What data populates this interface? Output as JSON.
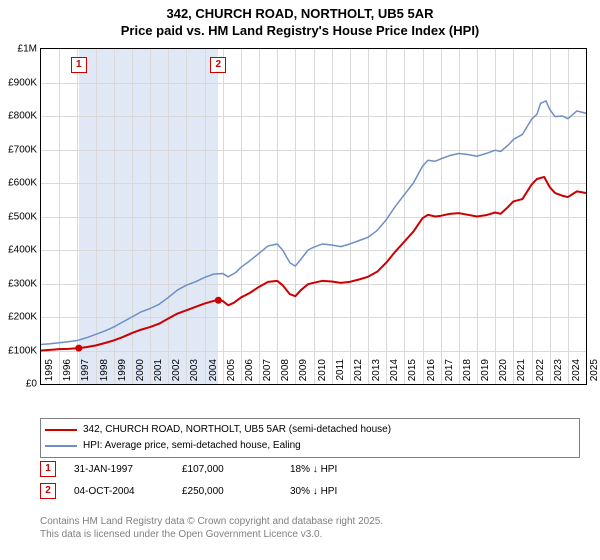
{
  "title_line1": "342, CHURCH ROAD, NORTHOLT, UB5 5AR",
  "title_line2": "Price paid vs. HM Land Registry's House Price Index (HPI)",
  "chart": {
    "type": "line",
    "background_color": "#ffffff",
    "grid_color": "#d9d9d9",
    "shade_color": "#e0e8f5",
    "border_color": "#000000",
    "ylim": [
      0,
      1000000
    ],
    "ytick_step": 100000,
    "ylabels": [
      "£0",
      "£100K",
      "£200K",
      "£300K",
      "£400K",
      "£500K",
      "£600K",
      "£700K",
      "£800K",
      "£900K",
      "£1M"
    ],
    "xlim": [
      1995,
      2025
    ],
    "xtick_step": 1,
    "xlabels": [
      "1995",
      "1996",
      "1997",
      "1998",
      "1999",
      "2000",
      "2001",
      "2002",
      "2003",
      "2004",
      "2005",
      "2006",
      "2007",
      "2008",
      "2009",
      "2010",
      "2011",
      "2012",
      "2013",
      "2014",
      "2015",
      "2016",
      "2017",
      "2018",
      "2019",
      "2020",
      "2021",
      "2022",
      "2023",
      "2024",
      "2025"
    ],
    "owned_periods": [
      {
        "start": 1997.08,
        "end": 2004.76
      }
    ],
    "markers": [
      {
        "id": "1",
        "year": 1997.08,
        "price": 107000
      },
      {
        "id": "2",
        "year": 2004.76,
        "price": 250000
      }
    ],
    "series": [
      {
        "name": "price_paid",
        "label": "342, CHURCH ROAD, NORTHOLT, UB5 5AR (semi-detached house)",
        "color": "#cc0000",
        "line_width": 2,
        "points": [
          [
            1995.0,
            100000
          ],
          [
            1995.5,
            102000
          ],
          [
            1996.0,
            104000
          ],
          [
            1996.5,
            105000
          ],
          [
            1997.08,
            107000
          ],
          [
            1997.5,
            110000
          ],
          [
            1998.0,
            115000
          ],
          [
            1998.5,
            122000
          ],
          [
            1999.0,
            130000
          ],
          [
            1999.5,
            140000
          ],
          [
            2000.0,
            152000
          ],
          [
            2000.5,
            162000
          ],
          [
            2001.0,
            170000
          ],
          [
            2001.5,
            180000
          ],
          [
            2002.0,
            195000
          ],
          [
            2002.5,
            210000
          ],
          [
            2003.0,
            220000
          ],
          [
            2003.5,
            230000
          ],
          [
            2004.0,
            240000
          ],
          [
            2004.5,
            248000
          ],
          [
            2004.76,
            250000
          ],
          [
            2005.0,
            248000
          ],
          [
            2005.3,
            235000
          ],
          [
            2005.6,
            242000
          ],
          [
            2006.0,
            258000
          ],
          [
            2006.5,
            272000
          ],
          [
            2007.0,
            290000
          ],
          [
            2007.5,
            305000
          ],
          [
            2008.0,
            308000
          ],
          [
            2008.3,
            295000
          ],
          [
            2008.7,
            268000
          ],
          [
            2009.0,
            262000
          ],
          [
            2009.3,
            280000
          ],
          [
            2009.7,
            298000
          ],
          [
            2010.0,
            302000
          ],
          [
            2010.5,
            308000
          ],
          [
            2011.0,
            306000
          ],
          [
            2011.5,
            302000
          ],
          [
            2012.0,
            305000
          ],
          [
            2012.5,
            312000
          ],
          [
            2013.0,
            320000
          ],
          [
            2013.5,
            335000
          ],
          [
            2014.0,
            362000
          ],
          [
            2014.5,
            395000
          ],
          [
            2015.0,
            425000
          ],
          [
            2015.5,
            455000
          ],
          [
            2016.0,
            495000
          ],
          [
            2016.3,
            505000
          ],
          [
            2016.7,
            500000
          ],
          [
            2017.0,
            502000
          ],
          [
            2017.5,
            508000
          ],
          [
            2018.0,
            510000
          ],
          [
            2018.5,
            505000
          ],
          [
            2019.0,
            500000
          ],
          [
            2019.5,
            504000
          ],
          [
            2020.0,
            512000
          ],
          [
            2020.3,
            508000
          ],
          [
            2020.7,
            528000
          ],
          [
            2021.0,
            545000
          ],
          [
            2021.5,
            552000
          ],
          [
            2022.0,
            595000
          ],
          [
            2022.3,
            612000
          ],
          [
            2022.7,
            618000
          ],
          [
            2023.0,
            588000
          ],
          [
            2023.3,
            570000
          ],
          [
            2023.7,
            562000
          ],
          [
            2024.0,
            558000
          ],
          [
            2024.5,
            575000
          ],
          [
            2025.0,
            570000
          ]
        ]
      },
      {
        "name": "hpi",
        "label": "HPI: Average price, semi-detached house, Ealing",
        "color": "#6e8fc6",
        "line_width": 1.5,
        "points": [
          [
            1995.0,
            118000
          ],
          [
            1995.5,
            120000
          ],
          [
            1996.0,
            123000
          ],
          [
            1996.5,
            126000
          ],
          [
            1997.0,
            130000
          ],
          [
            1997.5,
            138000
          ],
          [
            1998.0,
            148000
          ],
          [
            1998.5,
            158000
          ],
          [
            1999.0,
            170000
          ],
          [
            1999.5,
            185000
          ],
          [
            2000.0,
            200000
          ],
          [
            2000.5,
            215000
          ],
          [
            2001.0,
            225000
          ],
          [
            2001.5,
            238000
          ],
          [
            2002.0,
            258000
          ],
          [
            2002.5,
            280000
          ],
          [
            2003.0,
            295000
          ],
          [
            2003.5,
            305000
          ],
          [
            2004.0,
            318000
          ],
          [
            2004.5,
            328000
          ],
          [
            2005.0,
            330000
          ],
          [
            2005.3,
            320000
          ],
          [
            2005.7,
            332000
          ],
          [
            2006.0,
            348000
          ],
          [
            2006.5,
            368000
          ],
          [
            2007.0,
            390000
          ],
          [
            2007.5,
            412000
          ],
          [
            2008.0,
            418000
          ],
          [
            2008.3,
            400000
          ],
          [
            2008.7,
            362000
          ],
          [
            2009.0,
            352000
          ],
          [
            2009.3,
            372000
          ],
          [
            2009.7,
            400000
          ],
          [
            2010.0,
            408000
          ],
          [
            2010.5,
            418000
          ],
          [
            2011.0,
            415000
          ],
          [
            2011.5,
            410000
          ],
          [
            2012.0,
            418000
          ],
          [
            2012.5,
            428000
          ],
          [
            2013.0,
            438000
          ],
          [
            2013.5,
            458000
          ],
          [
            2014.0,
            490000
          ],
          [
            2014.5,
            530000
          ],
          [
            2015.0,
            565000
          ],
          [
            2015.5,
            600000
          ],
          [
            2016.0,
            650000
          ],
          [
            2016.3,
            668000
          ],
          [
            2016.7,
            665000
          ],
          [
            2017.0,
            672000
          ],
          [
            2017.5,
            682000
          ],
          [
            2018.0,
            688000
          ],
          [
            2018.5,
            685000
          ],
          [
            2019.0,
            680000
          ],
          [
            2019.5,
            688000
          ],
          [
            2020.0,
            698000
          ],
          [
            2020.3,
            694000
          ],
          [
            2020.7,
            712000
          ],
          [
            2021.0,
            730000
          ],
          [
            2021.5,
            745000
          ],
          [
            2022.0,
            790000
          ],
          [
            2022.3,
            805000
          ],
          [
            2022.5,
            838000
          ],
          [
            2022.8,
            845000
          ],
          [
            2023.0,
            820000
          ],
          [
            2023.3,
            798000
          ],
          [
            2023.7,
            800000
          ],
          [
            2024.0,
            792000
          ],
          [
            2024.5,
            815000
          ],
          [
            2025.0,
            808000
          ]
        ]
      }
    ]
  },
  "legend": {
    "border_color": "#808080"
  },
  "sales_table": {
    "columns": [
      "marker",
      "date",
      "price",
      "vs_hpi"
    ],
    "rows": [
      {
        "marker": "1",
        "date": "31-JAN-1997",
        "price": "£107,000",
        "vs_hpi": "18% ↓ HPI"
      },
      {
        "marker": "2",
        "date": "04-OCT-2004",
        "price": "£250,000",
        "vs_hpi": "30% ↓ HPI"
      }
    ]
  },
  "footer_line1": "Contains HM Land Registry data © Crown copyright and database right 2025.",
  "footer_line2": "This data is licensed under the Open Government Licence v3.0.",
  "colors": {
    "marker_border": "#cc0000",
    "footer_text": "#808080"
  }
}
